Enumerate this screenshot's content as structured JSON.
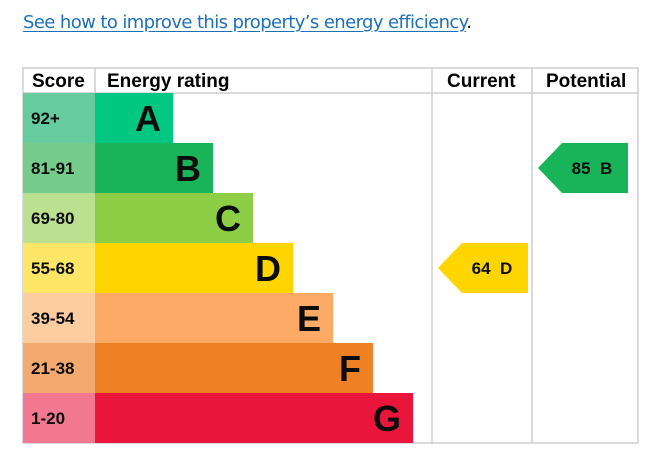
{
  "link": {
    "text": "See how to improve this property’s energy efficiency",
    "suffix": "."
  },
  "chart_data": {
    "type": "bar",
    "headers": {
      "score": "Score",
      "rating": "Energy rating",
      "current": "Current",
      "potential": "Potential"
    },
    "bands": [
      {
        "letter": "A",
        "range": "92+",
        "color": "#00c781",
        "score_color": "#66cca0"
      },
      {
        "letter": "B",
        "range": "81-91",
        "color": "#19b459",
        "score_color": "#75cc8b"
      },
      {
        "letter": "C",
        "range": "69-80",
        "color": "#8dce46",
        "score_color": "#bbe08f"
      },
      {
        "letter": "D",
        "range": "55-68",
        "color": "#ffd500",
        "score_color": "#ffe666"
      },
      {
        "letter": "E",
        "range": "39-54",
        "color": "#fcaa65",
        "score_color": "#fdcc9f"
      },
      {
        "letter": "F",
        "range": "21-38",
        "color": "#ef8023",
        "score_color": "#f4a96f"
      },
      {
        "letter": "G",
        "range": "1-20",
        "color": "#e9153b",
        "score_color": "#f27790"
      }
    ],
    "current": {
      "score": 64,
      "band": "D",
      "label": "64  D"
    },
    "potential": {
      "score": 85,
      "band": "B",
      "label": "85  B"
    }
  }
}
